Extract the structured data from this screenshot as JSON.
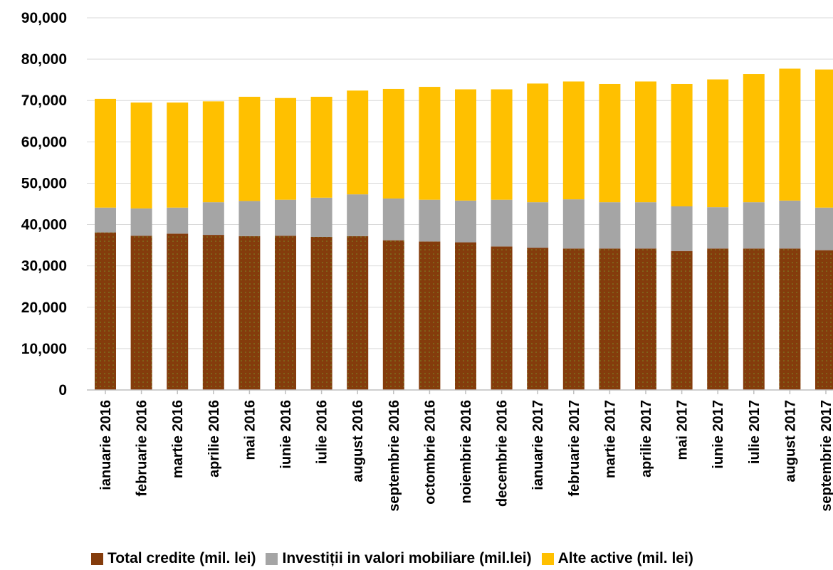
{
  "chart_data": {
    "type": "bar",
    "stacked": true,
    "categories": [
      "ianuarie 2016",
      "februarie 2016",
      "martie 2016",
      "aprilie 2016",
      "mai 2016",
      "iunie 2016",
      "iulie 2016",
      "august 2016",
      "septembrie 2016",
      "octombrie 2016",
      "noiembrie 2016",
      "decembrie 2016",
      "ianuarie 2017",
      "februarie 2017",
      "martie 2017",
      "aprilie 2017",
      "mai 2017",
      "iunie 2017",
      "iulie 2017",
      "august 2017",
      "septembrie 2017"
    ],
    "series": [
      {
        "name": "Total credite (mil. lei)",
        "color": "#843c0c",
        "values": [
          38100,
          37300,
          37800,
          37500,
          37200,
          37300,
          37000,
          37200,
          36200,
          35900,
          35700,
          34700,
          34400,
          34200,
          34200,
          34200,
          33600,
          34200,
          34200,
          34200,
          33800
        ]
      },
      {
        "name": "Investiții in valori mobiliare (mil.lei)",
        "color": "#a5a5a5",
        "values": [
          6000,
          6600,
          6300,
          7900,
          8500,
          8700,
          9500,
          10100,
          10100,
          10100,
          10100,
          11300,
          11000,
          11900,
          11200,
          11200,
          10800,
          10000,
          11200,
          11600,
          10300
        ]
      },
      {
        "name": "Alte active (mil. lei)",
        "color": "#ffc000",
        "values": [
          26300,
          25600,
          25400,
          24400,
          25200,
          24600,
          24400,
          25100,
          26500,
          27300,
          26900,
          26700,
          28700,
          28500,
          28600,
          29200,
          29600,
          30900,
          31000,
          31900,
          33400
        ]
      }
    ],
    "ylim": [
      0,
      90000
    ],
    "yticks": [
      0,
      10000,
      20000,
      30000,
      40000,
      50000,
      60000,
      70000,
      80000,
      90000
    ],
    "ytick_labels": [
      "0",
      "10,000",
      "20,000",
      "30,000",
      "40,000",
      "50,000",
      "60,000",
      "70,000",
      "80,000",
      "90,000"
    ],
    "grid": true,
    "legend_position": "bottom"
  }
}
